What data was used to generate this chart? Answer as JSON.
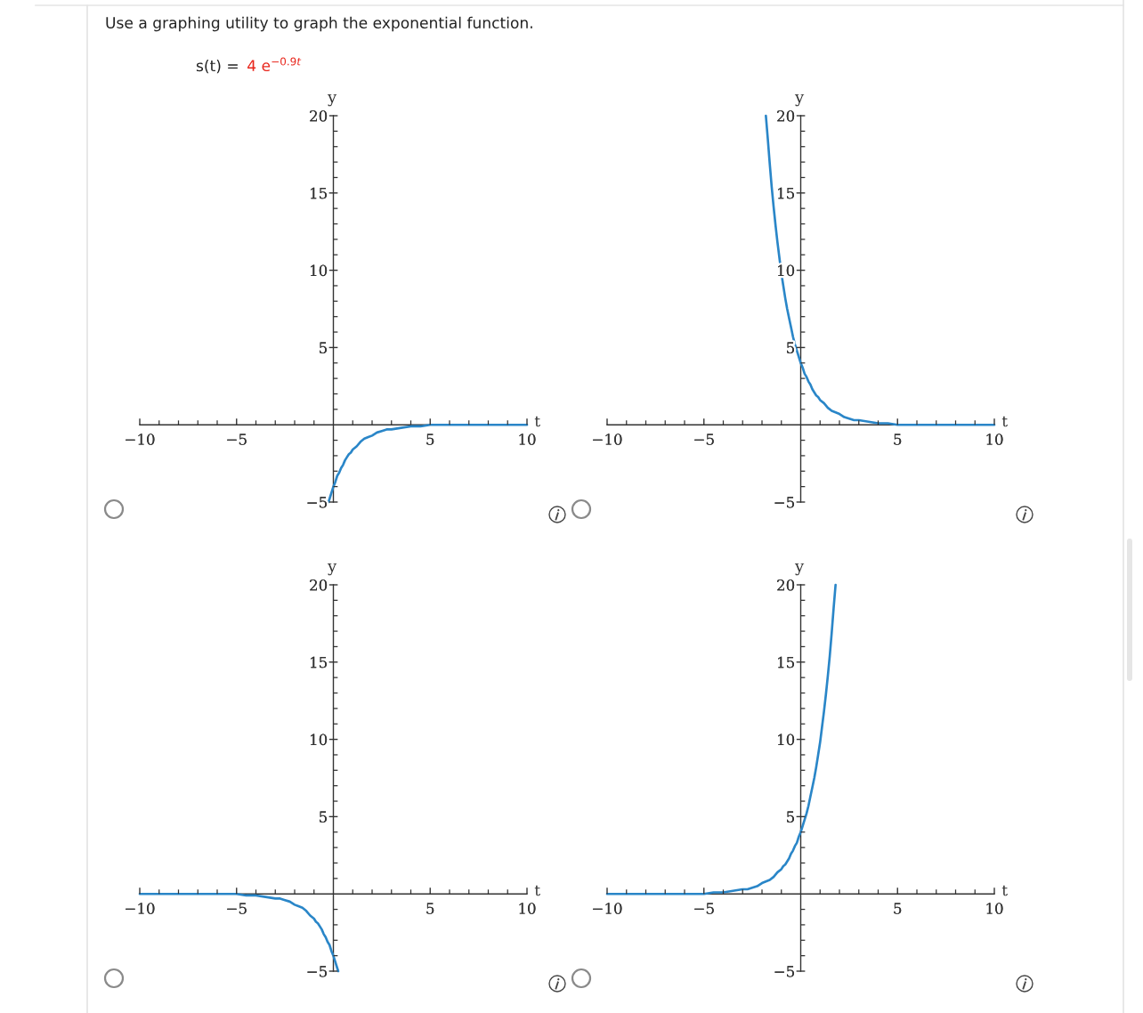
{
  "chart_data": [
    {
      "type": "other",
      "title": "Use a graphing utility to graph the exponential function.",
      "subtitle": "s(t) =",
      "annotations": [
        "4 e$^{−0.9t}$"
      ]
    },
    {
      "type": "line",
      "xlabel": "t",
      "ylabel": "y",
      "xlim": [
        -10,
        10
      ],
      "ylim": [
        -5,
        20
      ],
      "xticks": [
        {
          "value": -10,
          "label": "−10"
        },
        {
          "value": -9,
          "label": null
        },
        {
          "value": -8,
          "label": null
        },
        {
          "value": -7,
          "label": null
        },
        {
          "value": -6,
          "label": null
        },
        {
          "value": -5,
          "label": "−5"
        },
        {
          "value": -4,
          "label": null
        },
        {
          "value": -3,
          "label": null
        },
        {
          "value": -2,
          "label": null
        },
        {
          "value": -1,
          "label": null
        },
        {
          "value": 1,
          "label": null
        },
        {
          "value": 2,
          "label": null
        },
        {
          "value": 3,
          "label": null
        },
        {
          "value": 4,
          "label": null
        },
        5,
        {
          "value": 6,
          "label": null
        },
        {
          "value": 7,
          "label": null
        },
        {
          "value": 8,
          "label": null
        },
        {
          "value": 9,
          "label": null
        },
        10
      ],
      "yticks": [
        {
          "value": -5,
          "label": "−5"
        },
        {
          "value": -4,
          "label": null
        },
        {
          "value": -3,
          "label": null
        },
        {
          "value": -2,
          "label": null
        },
        {
          "value": -1,
          "label": null
        },
        {
          "value": 1,
          "label": null
        },
        {
          "value": 2,
          "label": null
        },
        {
          "value": 3,
          "label": null
        },
        {
          "value": 4,
          "label": null
        },
        5,
        {
          "value": 6,
          "label": null
        },
        {
          "value": 7,
          "label": null
        },
        {
          "value": 8,
          "label": null
        },
        {
          "value": 9,
          "label": null
        },
        10,
        {
          "value": 11,
          "label": null
        },
        {
          "value": 12,
          "label": null
        },
        {
          "value": 13,
          "label": null
        },
        {
          "value": 14,
          "label": null
        },
        15,
        {
          "value": 16,
          "label": null
        },
        {
          "value": 17,
          "label": null
        },
        {
          "value": 18,
          "label": null
        },
        {
          "value": 19,
          "label": null
        },
        20
      ],
      "series": [
        {
          "color": "#2a86c8",
          "x": [
            -0.25,
            -0.1,
            0,
            0.1,
            0.2,
            0.3,
            0.4,
            0.5,
            0.6,
            0.7,
            0.8,
            0.9,
            1,
            1.2,
            1.4,
            1.6,
            1.8,
            2,
            2.25,
            2.5,
            2.75,
            3,
            3.5,
            4,
            4.5,
            5,
            6,
            7,
            8,
            9,
            10
          ],
          "values": [
            -5.0,
            -4.4,
            -4.0,
            -3.7,
            -3.3,
            -3.1,
            -2.8,
            -2.6,
            -2.3,
            -2.1,
            -1.9,
            -1.8,
            -1.6,
            -1.4,
            -1.1,
            -0.9,
            -0.8,
            -0.7,
            -0.5,
            -0.4,
            -0.3,
            -0.3,
            -0.2,
            -0.1,
            -0.1,
            0,
            0,
            0,
            0,
            0,
            0
          ]
        }
      ]
    },
    {
      "type": "line",
      "xlabel": "t",
      "ylabel": "y",
      "xlim": [
        -10,
        10
      ],
      "ylim": [
        -5,
        20
      ],
      "xticks": [
        {
          "value": -10,
          "label": "−10"
        },
        {
          "value": -9,
          "label": null
        },
        {
          "value": -8,
          "label": null
        },
        {
          "value": -7,
          "label": null
        },
        {
          "value": -6,
          "label": null
        },
        {
          "value": -5,
          "label": "−5"
        },
        {
          "value": -4,
          "label": null
        },
        {
          "value": -3,
          "label": null
        },
        {
          "value": -2,
          "label": null
        },
        {
          "value": -1,
          "label": null
        },
        {
          "value": 1,
          "label": null
        },
        {
          "value": 2,
          "label": null
        },
        {
          "value": 3,
          "label": null
        },
        {
          "value": 4,
          "label": null
        },
        5,
        {
          "value": 6,
          "label": null
        },
        {
          "value": 7,
          "label": null
        },
        {
          "value": 8,
          "label": null
        },
        {
          "value": 9,
          "label": null
        },
        10
      ],
      "yticks": [
        {
          "value": -5,
          "label": "−5"
        },
        {
          "value": -4,
          "label": null
        },
        {
          "value": -3,
          "label": null
        },
        {
          "value": -2,
          "label": null
        },
        {
          "value": -1,
          "label": null
        },
        {
          "value": 1,
          "label": null
        },
        {
          "value": 2,
          "label": null
        },
        {
          "value": 3,
          "label": null
        },
        {
          "value": 4,
          "label": null
        },
        5,
        {
          "value": 6,
          "label": null
        },
        {
          "value": 7,
          "label": null
        },
        {
          "value": 8,
          "label": null
        },
        {
          "value": 9,
          "label": null
        },
        10,
        {
          "value": 11,
          "label": null
        },
        {
          "value": 12,
          "label": null
        },
        {
          "value": 13,
          "label": null
        },
        {
          "value": 14,
          "label": null
        },
        15,
        {
          "value": 16,
          "label": null
        },
        {
          "value": 17,
          "label": null
        },
        {
          "value": 18,
          "label": null
        },
        {
          "value": 19,
          "label": null
        },
        20
      ],
      "series": [
        {
          "color": "#2a86c8",
          "x": [
            -1.8,
            -1.7,
            -1.6,
            -1.5,
            -1.4,
            -1.3,
            -1.2,
            -1.1,
            -1,
            -0.9,
            -0.8,
            -0.7,
            -0.6,
            -0.5,
            -0.4,
            -0.3,
            -0.2,
            -0.1,
            0,
            0.1,
            0.2,
            0.3,
            0.4,
            0.5,
            0.6,
            0.7,
            0.8,
            0.9,
            1,
            1.2,
            1.4,
            1.6,
            1.8,
            2,
            2.25,
            2.5,
            2.75,
            3,
            3.5,
            4,
            4.5,
            5,
            6,
            7,
            8,
            9,
            10
          ],
          "values": [
            20,
            18.5,
            16.9,
            15.4,
            14.1,
            12.9,
            11.8,
            10.8,
            9.8,
            9.0,
            8.2,
            7.5,
            6.9,
            6.3,
            5.7,
            5.2,
            4.8,
            4.4,
            4.0,
            3.7,
            3.3,
            3.1,
            2.8,
            2.6,
            2.3,
            2.1,
            1.9,
            1.8,
            1.6,
            1.4,
            1.1,
            0.9,
            0.8,
            0.7,
            0.5,
            0.4,
            0.3,
            0.3,
            0.2,
            0.1,
            0.1,
            0,
            0,
            0,
            0,
            0,
            0
          ]
        }
      ]
    },
    {
      "type": "line",
      "xlabel": "t",
      "ylabel": "y",
      "xlim": [
        -10,
        10
      ],
      "ylim": [
        -5,
        20
      ],
      "xticks": [
        {
          "value": -10,
          "label": "−10"
        },
        {
          "value": -9,
          "label": null
        },
        {
          "value": -8,
          "label": null
        },
        {
          "value": -7,
          "label": null
        },
        {
          "value": -6,
          "label": null
        },
        {
          "value": -5,
          "label": "−5"
        },
        {
          "value": -4,
          "label": null
        },
        {
          "value": -3,
          "label": null
        },
        {
          "value": -2,
          "label": null
        },
        {
          "value": -1,
          "label": null
        },
        {
          "value": 1,
          "label": null
        },
        {
          "value": 2,
          "label": null
        },
        {
          "value": 3,
          "label": null
        },
        {
          "value": 4,
          "label": null
        },
        5,
        {
          "value": 6,
          "label": null
        },
        {
          "value": 7,
          "label": null
        },
        {
          "value": 8,
          "label": null
        },
        {
          "value": 9,
          "label": null
        },
        10
      ],
      "yticks": [
        {
          "value": -5,
          "label": "−5"
        },
        {
          "value": -4,
          "label": null
        },
        {
          "value": -3,
          "label": null
        },
        {
          "value": -2,
          "label": null
        },
        {
          "value": -1,
          "label": null
        },
        {
          "value": 1,
          "label": null
        },
        {
          "value": 2,
          "label": null
        },
        {
          "value": 3,
          "label": null
        },
        {
          "value": 4,
          "label": null
        },
        5,
        {
          "value": 6,
          "label": null
        },
        {
          "value": 7,
          "label": null
        },
        {
          "value": 8,
          "label": null
        },
        {
          "value": 9,
          "label": null
        },
        10,
        {
          "value": 11,
          "label": null
        },
        {
          "value": 12,
          "label": null
        },
        {
          "value": 13,
          "label": null
        },
        {
          "value": 14,
          "label": null
        },
        15,
        {
          "value": 16,
          "label": null
        },
        {
          "value": 17,
          "label": null
        },
        {
          "value": 18,
          "label": null
        },
        {
          "value": 19,
          "label": null
        },
        20
      ],
      "series": [
        {
          "color": "#2a86c8",
          "x": [
            -10,
            -9,
            -8,
            -7,
            -6,
            -5,
            -4.5,
            -4,
            -3.5,
            -3,
            -2.75,
            -2.5,
            -2.25,
            -2,
            -1.8,
            -1.6,
            -1.4,
            -1.2,
            -1,
            -0.9,
            -0.8,
            -0.7,
            -0.6,
            -0.5,
            -0.4,
            -0.3,
            -0.2,
            -0.1,
            0,
            0.1,
            0.25
          ],
          "values": [
            0,
            0,
            0,
            0,
            0,
            0,
            -0.1,
            -0.1,
            -0.2,
            -0.3,
            -0.3,
            -0.4,
            -0.5,
            -0.7,
            -0.8,
            -0.9,
            -1.1,
            -1.4,
            -1.6,
            -1.8,
            -1.9,
            -2.1,
            -2.3,
            -2.6,
            -2.8,
            -3.1,
            -3.3,
            -3.7,
            -4.0,
            -4.4,
            -5.0
          ]
        }
      ]
    },
    {
      "type": "line",
      "xlabel": "t",
      "ylabel": "y",
      "xlim": [
        -10,
        10
      ],
      "ylim": [
        -5,
        20
      ],
      "xticks": [
        {
          "value": -10,
          "label": "−10"
        },
        {
          "value": -9,
          "label": null
        },
        {
          "value": -8,
          "label": null
        },
        {
          "value": -7,
          "label": null
        },
        {
          "value": -6,
          "label": null
        },
        {
          "value": -5,
          "label": "−5"
        },
        {
          "value": -4,
          "label": null
        },
        {
          "value": -3,
          "label": null
        },
        {
          "value": -2,
          "label": null
        },
        {
          "value": -1,
          "label": null
        },
        {
          "value": 1,
          "label": null
        },
        {
          "value": 2,
          "label": null
        },
        {
          "value": 3,
          "label": null
        },
        {
          "value": 4,
          "label": null
        },
        5,
        {
          "value": 6,
          "label": null
        },
        {
          "value": 7,
          "label": null
        },
        {
          "value": 8,
          "label": null
        },
        {
          "value": 9,
          "label": null
        },
        10
      ],
      "yticks": [
        {
          "value": -5,
          "label": "−5"
        },
        {
          "value": -4,
          "label": null
        },
        {
          "value": -3,
          "label": null
        },
        {
          "value": -2,
          "label": null
        },
        {
          "value": -1,
          "label": null
        },
        {
          "value": 1,
          "label": null
        },
        {
          "value": 2,
          "label": null
        },
        {
          "value": 3,
          "label": null
        },
        {
          "value": 4,
          "label": null
        },
        5,
        {
          "value": 6,
          "label": null
        },
        {
          "value": 7,
          "label": null
        },
        {
          "value": 8,
          "label": null
        },
        {
          "value": 9,
          "label": null
        },
        10,
        {
          "value": 11,
          "label": null
        },
        {
          "value": 12,
          "label": null
        },
        {
          "value": 13,
          "label": null
        },
        {
          "value": 14,
          "label": null
        },
        15,
        {
          "value": 16,
          "label": null
        },
        {
          "value": 17,
          "label": null
        },
        {
          "value": 18,
          "label": null
        },
        {
          "value": 19,
          "label": null
        },
        20
      ],
      "series": [
        {
          "color": "#2a86c8",
          "x": [
            -10,
            -9,
            -8,
            -7,
            -6,
            -5,
            -4.5,
            -4,
            -3.5,
            -3,
            -2.75,
            -2.5,
            -2.25,
            -2,
            -1.8,
            -1.6,
            -1.4,
            -1.2,
            -1,
            -0.9,
            -0.8,
            -0.7,
            -0.6,
            -0.5,
            -0.4,
            -0.3,
            -0.2,
            -0.1,
            0,
            0.1,
            0.2,
            0.3,
            0.4,
            0.5,
            0.6,
            0.7,
            0.8,
            0.9,
            1,
            1.1,
            1.2,
            1.3,
            1.4,
            1.5,
            1.6,
            1.7,
            1.8
          ],
          "values": [
            0,
            0,
            0,
            0,
            0,
            0,
            0.1,
            0.1,
            0.2,
            0.3,
            0.3,
            0.4,
            0.5,
            0.7,
            0.8,
            0.9,
            1.1,
            1.4,
            1.6,
            1.8,
            1.9,
            2.1,
            2.3,
            2.6,
            2.8,
            3.1,
            3.3,
            3.7,
            4.0,
            4.4,
            4.8,
            5.2,
            5.7,
            6.3,
            6.9,
            7.5,
            8.2,
            9.0,
            9.8,
            10.8,
            11.8,
            12.9,
            14.1,
            15.4,
            16.9,
            18.5,
            20
          ]
        }
      ]
    }
  ]
}
